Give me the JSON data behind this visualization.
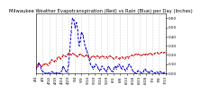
{
  "title": "Milwaukee Weather Evapotranspiration (Red) vs Rain (Blue) per Day (Inches)",
  "red_y": [
    0.08,
    0.09,
    0.1,
    0.09,
    0.08,
    0.09,
    0.1,
    0.11,
    0.1,
    0.09,
    0.11,
    0.13,
    0.15,
    0.14,
    0.13,
    0.14,
    0.16,
    0.18,
    0.17,
    0.16,
    0.18,
    0.2,
    0.19,
    0.18,
    0.2,
    0.22,
    0.21,
    0.2,
    0.22,
    0.21,
    0.2,
    0.19,
    0.18,
    0.2,
    0.21,
    0.2,
    0.19,
    0.18,
    0.19,
    0.2,
    0.18,
    0.17,
    0.16,
    0.18,
    0.19,
    0.18,
    0.17,
    0.19,
    0.18,
    0.17,
    0.18,
    0.19,
    0.18,
    0.17,
    0.18,
    0.17,
    0.18,
    0.19,
    0.18,
    0.17,
    0.16,
    0.17,
    0.18,
    0.17,
    0.16,
    0.17,
    0.18,
    0.17,
    0.16,
    0.17,
    0.18,
    0.17,
    0.18,
    0.19,
    0.2,
    0.19,
    0.2,
    0.21,
    0.2,
    0.21,
    0.2,
    0.19,
    0.2,
    0.21,
    0.2,
    0.21,
    0.2,
    0.21,
    0.22,
    0.21,
    0.2,
    0.21,
    0.22,
    0.23,
    0.22,
    0.21,
    0.22,
    0.23,
    0.22,
    0.23,
    0.22
  ],
  "blue_y": [
    0.05,
    0.08,
    0.12,
    0.08,
    0.04,
    0.02,
    0.01,
    0.0,
    0.0,
    0.01,
    0.0,
    0.0,
    0.02,
    0.01,
    0.0,
    0.0,
    0.01,
    0.0,
    0.0,
    0.0,
    0.05,
    0.08,
    0.04,
    0.02,
    0.01,
    0.1,
    0.25,
    0.45,
    0.6,
    0.58,
    0.5,
    0.55,
    0.48,
    0.3,
    0.35,
    0.45,
    0.42,
    0.35,
    0.28,
    0.25,
    0.2,
    0.15,
    0.1,
    0.08,
    0.05,
    0.08,
    0.1,
    0.08,
    0.05,
    0.03,
    0.05,
    0.08,
    0.06,
    0.04,
    0.02,
    0.05,
    0.08,
    0.05,
    0.03,
    0.02,
    0.05,
    0.08,
    0.05,
    0.08,
    0.1,
    0.08,
    0.05,
    0.08,
    0.05,
    0.03,
    0.05,
    0.08,
    0.1,
    0.08,
    0.05,
    0.02,
    0.01,
    0.0,
    0.02,
    0.03,
    0.02,
    0.01,
    0.0,
    0.02,
    0.05,
    0.03,
    0.02,
    0.01,
    0.02,
    0.03,
    0.02,
    0.01,
    0.0,
    0.02,
    0.01,
    0.0,
    0.02,
    0.01,
    0.0,
    0.01,
    0.0
  ],
  "n": 101,
  "xtick_positions": [
    0,
    5,
    10,
    15,
    20,
    25,
    30,
    35,
    40,
    45,
    50,
    55,
    60,
    65,
    70,
    75,
    80,
    85,
    90,
    95,
    100
  ],
  "xtick_labels": [
    "4/4",
    "4/9",
    "4/14",
    "4/19",
    "4/24",
    "4/29",
    "5/4",
    "5/9",
    "5/14",
    "5/19",
    "5/24",
    "5/29",
    "6/3",
    "6/8",
    "6/13",
    "6/18",
    "6/23",
    "6/28",
    "7/3",
    "7/8",
    "7/13"
  ],
  "ytick_positions": [
    0.0,
    0.1,
    0.2,
    0.3,
    0.4,
    0.5,
    0.6
  ],
  "ytick_labels": [
    "0.00",
    "0.10",
    "0.20",
    "0.30",
    "0.40",
    "0.50",
    "0.60"
  ],
  "ylim": [
    0.0,
    0.65
  ],
  "xlim": [
    0,
    100
  ],
  "red_color": "#cc0000",
  "blue_color": "#0000cc",
  "grid_color": "#999999",
  "bg_color": "#ffffff",
  "title_fontsize": 3.8,
  "tick_fontsize": 3.0,
  "linewidth": 0.7,
  "markersize": 1.2
}
